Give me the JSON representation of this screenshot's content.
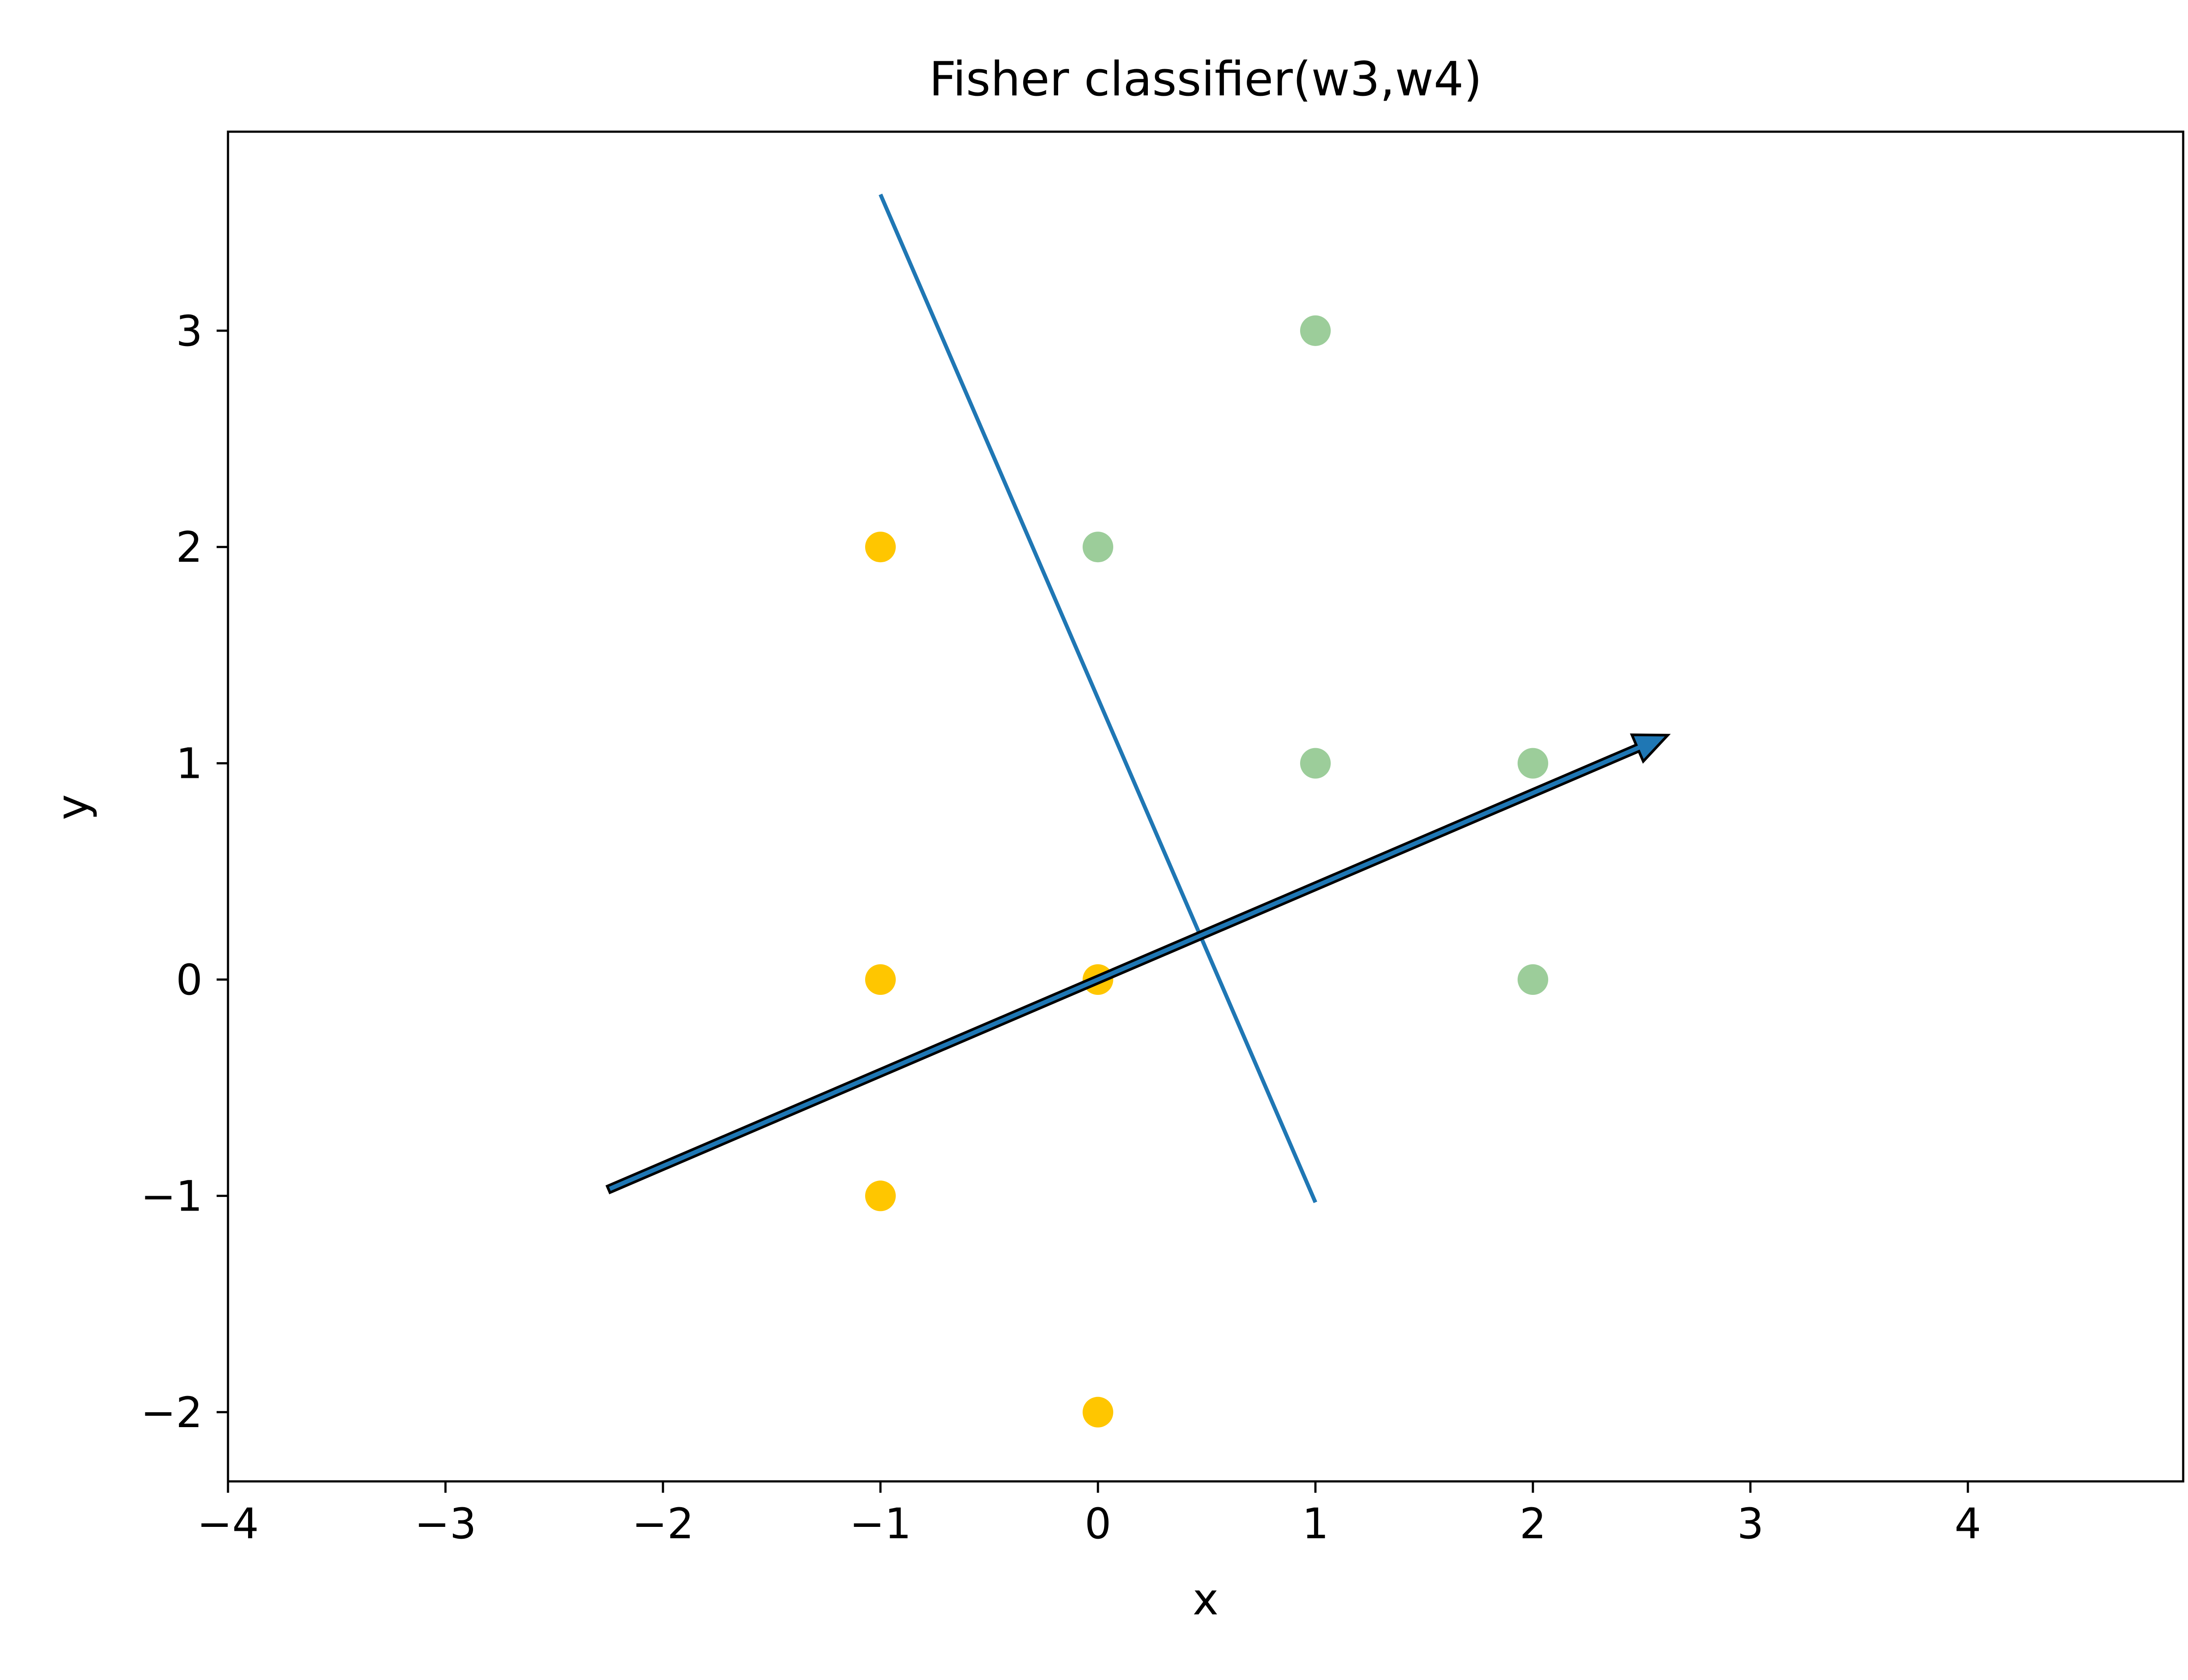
{
  "chart_data": {
    "type": "scatter",
    "title": "Fisher classifier(w3,w4)",
    "xlabel": "x",
    "ylabel": "y",
    "xlim": [
      -4,
      4.99
    ],
    "ylim": [
      -2.32,
      3.92
    ],
    "x_ticks": [
      -4,
      -3,
      -2,
      -1,
      0,
      1,
      2,
      3,
      4
    ],
    "x_tick_labels": [
      "−4",
      "−3",
      "−2",
      "−1",
      "0",
      "1",
      "2",
      "3",
      "4"
    ],
    "y_ticks": [
      -2,
      -1,
      0,
      1,
      2,
      3
    ],
    "y_tick_labels": [
      "−2",
      "−1",
      "0",
      "1",
      "2",
      "3"
    ],
    "grid": false,
    "legend": null,
    "series": [
      {
        "color": "#ffc600",
        "points": [
          [
            -1,
            2
          ],
          [
            -1,
            0
          ],
          [
            0,
            0
          ],
          [
            -1,
            -1
          ],
          [
            0,
            -2
          ]
        ]
      },
      {
        "color": "#9ccd9a",
        "points": [
          [
            1,
            3
          ],
          [
            0,
            2
          ],
          [
            1,
            1
          ],
          [
            2,
            1
          ],
          [
            2,
            0
          ]
        ]
      }
    ],
    "decision_line": {
      "color": "#1f77b4",
      "from": [
        -1.0,
        3.63
      ],
      "to": [
        1.0,
        -1.03
      ]
    },
    "projection_arrow": {
      "color": "#1f77b4",
      "edge_color": "#000000",
      "from": [
        -2.25,
        -0.97
      ],
      "to": [
        2.62,
        1.13
      ]
    }
  }
}
